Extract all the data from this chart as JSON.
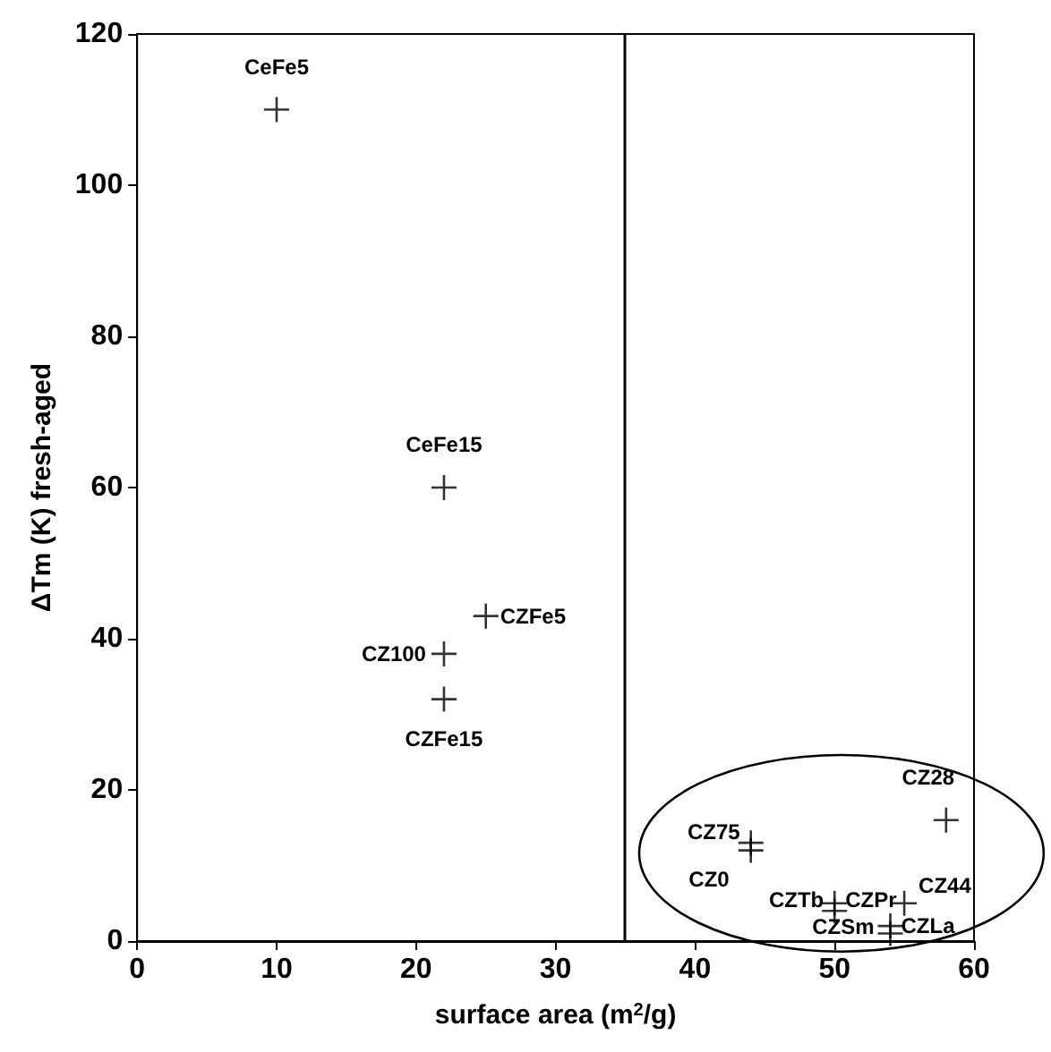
{
  "chart_data": {
    "type": "scatter",
    "xlabel": "surface area (m$^{2}$/g)",
    "ylabel": "ΔTm (K) fresh-aged",
    "x": [
      10,
      22,
      25,
      22,
      22,
      44,
      44,
      58,
      50,
      50,
      55,
      54,
      54
    ],
    "values": [
      110,
      60,
      43,
      38,
      32,
      13,
      12,
      16,
      4,
      5,
      5,
      1,
      2
    ],
    "color": "#000000",
    "marker": "cross",
    "grid": false,
    "xlim": [
      0,
      60
    ],
    "xticks": [
      0,
      10,
      20,
      30,
      40,
      50,
      60
    ],
    "ylim": [
      0,
      120
    ],
    "yticks": [
      0,
      20,
      40,
      60,
      80,
      100,
      120
    ],
    "ref_lines": [
      {
        "axis": "x",
        "value": 35,
        "color": "#000000"
      }
    ],
    "annotations": [
      {
        "text": "CeFe5",
        "x": 10,
        "y": 110
      },
      {
        "text": "CeFe15",
        "x": 22,
        "y": 60
      },
      {
        "text": "CZFe5",
        "x": 25,
        "y": 43
      },
      {
        "text": "CZ100",
        "x": 22,
        "y": 38
      },
      {
        "text": "CZFe15",
        "x": 22,
        "y": 32
      },
      {
        "text": "CZ75",
        "x": 44,
        "y": 13
      },
      {
        "text": "CZ0",
        "x": 44,
        "y": 12
      },
      {
        "text": "CZ28",
        "x": 58,
        "y": 16
      },
      {
        "text": "CZTb",
        "x": 50,
        "y": 4
      },
      {
        "text": "CZPr",
        "x": 50,
        "y": 5
      },
      {
        "text": "CZ44",
        "x": 55,
        "y": 5
      },
      {
        "text": "CZSm",
        "x": 54,
        "y": 1
      },
      {
        "text": "CZLa",
        "x": 54,
        "y": 2
      }
    ]
  }
}
